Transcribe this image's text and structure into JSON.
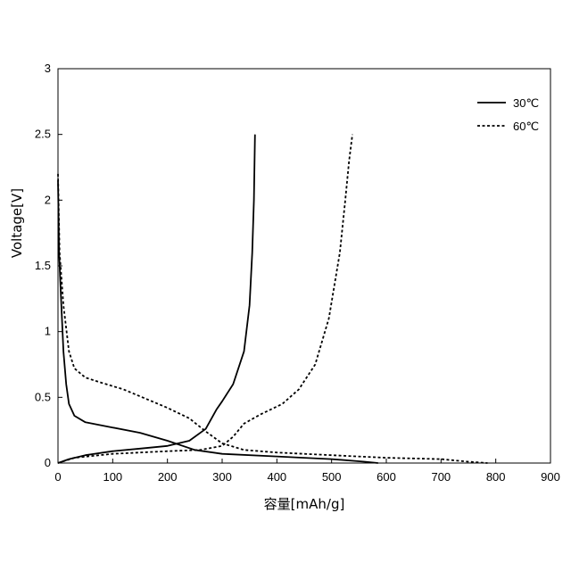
{
  "chart_data": {
    "type": "line",
    "xlabel": "容量[mAh/g]",
    "ylabel": "Voltage[V]",
    "xlim": [
      0,
      900
    ],
    "ylim": [
      0,
      3
    ],
    "xticks": [
      "0",
      "100",
      "200",
      "300",
      "400",
      "500",
      "600",
      "700",
      "800",
      "900"
    ],
    "yticks": [
      "0",
      "0.5",
      "1",
      "1.5",
      "2",
      "2.5",
      "3"
    ],
    "legend_position": "top-right",
    "grid": false,
    "series": [
      {
        "name": "30℃",
        "style": "solid",
        "color": "#000000",
        "segments": [
          [
            [
              0,
              2.15
            ],
            [
              2,
              1.6
            ],
            [
              5,
              1.3
            ],
            [
              10,
              0.85
            ],
            [
              15,
              0.6
            ],
            [
              20,
              0.45
            ],
            [
              30,
              0.36
            ],
            [
              50,
              0.31
            ],
            [
              100,
              0.27
            ],
            [
              150,
              0.23
            ],
            [
              200,
              0.17
            ],
            [
              250,
              0.1
            ],
            [
              300,
              0.07
            ],
            [
              400,
              0.05
            ],
            [
              500,
              0.03
            ],
            [
              560,
              0.01
            ],
            [
              585,
              0.0
            ]
          ],
          [
            [
              0,
              0.0
            ],
            [
              20,
              0.03
            ],
            [
              50,
              0.06
            ],
            [
              100,
              0.09
            ],
            [
              150,
              0.11
            ],
            [
              200,
              0.13
            ],
            [
              240,
              0.17
            ],
            [
              270,
              0.26
            ],
            [
              290,
              0.41
            ],
            [
              300,
              0.47
            ],
            [
              320,
              0.6
            ],
            [
              340,
              0.85
            ],
            [
              350,
              1.2
            ],
            [
              355,
              1.6
            ],
            [
              358,
              2.0
            ],
            [
              360,
              2.5
            ]
          ]
        ]
      },
      {
        "name": "60℃",
        "style": "dashed",
        "color": "#000000",
        "segments": [
          [
            [
              0,
              2.2
            ],
            [
              3,
              1.6
            ],
            [
              10,
              1.2
            ],
            [
              20,
              0.85
            ],
            [
              30,
              0.72
            ],
            [
              50,
              0.65
            ],
            [
              80,
              0.61
            ],
            [
              120,
              0.56
            ],
            [
              160,
              0.49
            ],
            [
              200,
              0.42
            ],
            [
              240,
              0.34
            ],
            [
              270,
              0.24
            ],
            [
              300,
              0.15
            ],
            [
              340,
              0.1
            ],
            [
              400,
              0.08
            ],
            [
              500,
              0.06
            ],
            [
              600,
              0.04
            ],
            [
              700,
              0.03
            ],
            [
              750,
              0.01
            ],
            [
              785,
              0.0
            ]
          ],
          [
            [
              0,
              0.0
            ],
            [
              30,
              0.04
            ],
            [
              100,
              0.07
            ],
            [
              200,
              0.09
            ],
            [
              260,
              0.1
            ],
            [
              300,
              0.13
            ],
            [
              320,
              0.2
            ],
            [
              340,
              0.3
            ],
            [
              370,
              0.37
            ],
            [
              410,
              0.45
            ],
            [
              440,
              0.56
            ],
            [
              470,
              0.75
            ],
            [
              495,
              1.1
            ],
            [
              515,
              1.6
            ],
            [
              525,
              2.0
            ],
            [
              532,
              2.3
            ],
            [
              538,
              2.5
            ]
          ]
        ]
      }
    ]
  }
}
